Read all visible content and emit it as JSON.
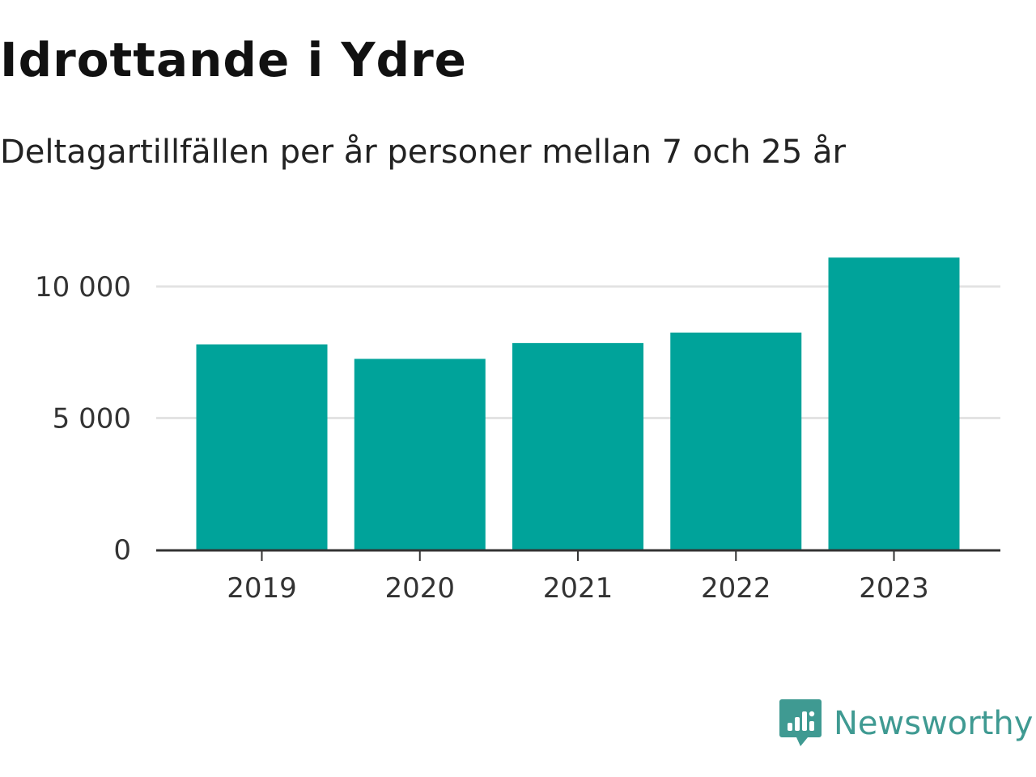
{
  "title": "Idrottande i Ydre",
  "subtitle": "Deltagartillfällen per år personer mellan 7 och 25 år",
  "brand": {
    "name": "Newsworthy",
    "icon": "bar-chart-speech-bubble-icon",
    "color": "#3f9a92"
  },
  "chart_data": {
    "type": "bar",
    "categories": [
      "2019",
      "2020",
      "2021",
      "2022",
      "2023"
    ],
    "values": [
      7800,
      7250,
      7850,
      8250,
      11100
    ],
    "ylim": [
      0,
      11200
    ],
    "yticks": [
      0,
      5000,
      10000
    ],
    "ytick_labels": [
      "0",
      "5 000",
      "10 000"
    ],
    "grid": true,
    "bar_color": "#00a39a",
    "gridline_color": "#e3e3e3",
    "axis_color": "#333333"
  }
}
